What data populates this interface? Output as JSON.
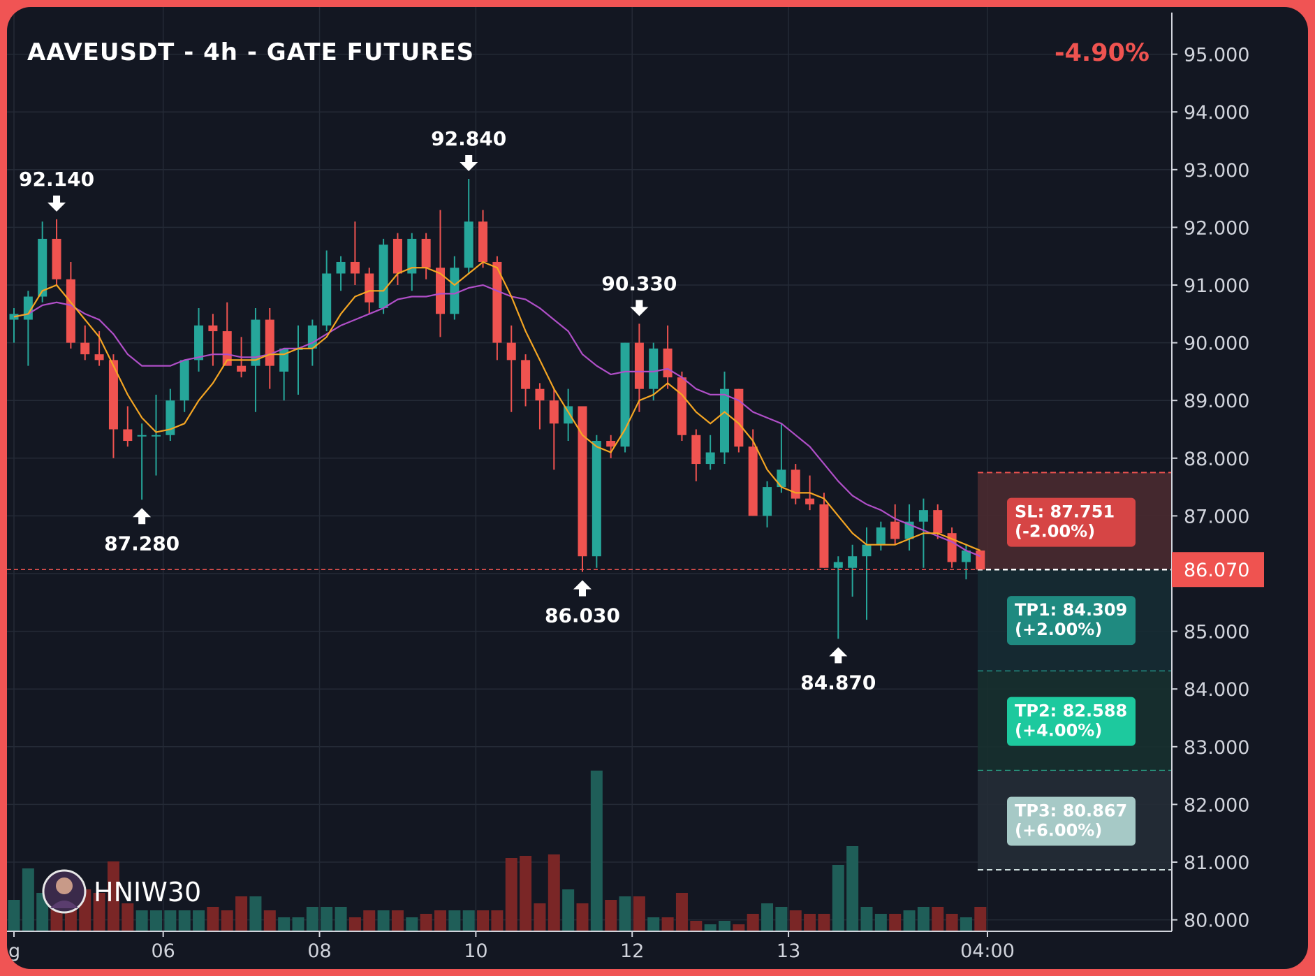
{
  "header": {
    "title": "AAVEUSDT - 4h - GATE FUTURES",
    "change": "-4.90%"
  },
  "colors": {
    "background": "#131722",
    "border": "#f05454",
    "up": "#26a69a",
    "down": "#ef5350",
    "ma_fast": "#f5a623",
    "ma_slow": "#b04fc8",
    "volume_up": "#1f5e58",
    "volume_down": "#7a2626",
    "current_price": "#ef5350"
  },
  "watermark": {
    "name": "HNIW30"
  },
  "current_price": {
    "value": 86.07,
    "label": "86.070"
  },
  "chart_data": {
    "type": "candlestick",
    "title": "AAVEUSDT - 4h - GATE FUTURES",
    "ylim": [
      80,
      95.5
    ],
    "y_ticks": [
      "95.000",
      "94.000",
      "93.000",
      "92.000",
      "91.000",
      "90.000",
      "89.000",
      "88.000",
      "87.000",
      "86.000",
      "85.000",
      "84.000",
      "83.000",
      "82.000",
      "81.000",
      "80.000"
    ],
    "y_tick_values": [
      95,
      94,
      93,
      92,
      91,
      90,
      89,
      88,
      87,
      86,
      85,
      84,
      83,
      82,
      81,
      80
    ],
    "x_ticks": [
      {
        "label": "g",
        "index": 0
      },
      {
        "label": "06",
        "index": 10.5
      },
      {
        "label": "08",
        "index": 21.5
      },
      {
        "label": "10",
        "index": 32.5
      },
      {
        "label": "12",
        "index": 43.5
      },
      {
        "label": "13",
        "index": 54.5
      },
      {
        "label": "04:00",
        "index": 68.5
      }
    ],
    "candles": [
      {
        "o": 90.4,
        "h": 90.6,
        "l": 90.0,
        "c": 90.5
      },
      {
        "o": 90.4,
        "h": 90.9,
        "l": 89.6,
        "c": 90.8
      },
      {
        "o": 90.8,
        "h": 92.1,
        "l": 90.7,
        "c": 91.8
      },
      {
        "o": 91.8,
        "h": 92.14,
        "l": 91.0,
        "c": 91.1
      },
      {
        "o": 91.1,
        "h": 91.4,
        "l": 89.9,
        "c": 90.0
      },
      {
        "o": 90.0,
        "h": 90.3,
        "l": 89.7,
        "c": 89.8
      },
      {
        "o": 89.8,
        "h": 90.2,
        "l": 89.6,
        "c": 89.7
      },
      {
        "o": 89.7,
        "h": 89.8,
        "l": 88.0,
        "c": 88.5
      },
      {
        "o": 88.5,
        "h": 88.9,
        "l": 88.2,
        "c": 88.3
      },
      {
        "o": 88.4,
        "h": 88.6,
        "l": 87.28,
        "c": 88.4
      },
      {
        "o": 88.4,
        "h": 89.1,
        "l": 87.7,
        "c": 88.4
      },
      {
        "o": 88.4,
        "h": 89.2,
        "l": 88.3,
        "c": 89.0
      },
      {
        "o": 89.0,
        "h": 89.6,
        "l": 88.8,
        "c": 89.7
      },
      {
        "o": 89.7,
        "h": 90.6,
        "l": 89.5,
        "c": 90.3
      },
      {
        "o": 90.3,
        "h": 90.5,
        "l": 89.6,
        "c": 90.2
      },
      {
        "o": 90.2,
        "h": 90.7,
        "l": 89.6,
        "c": 89.6
      },
      {
        "o": 89.6,
        "h": 90.1,
        "l": 89.4,
        "c": 89.5
      },
      {
        "o": 89.6,
        "h": 90.6,
        "l": 88.8,
        "c": 90.4
      },
      {
        "o": 90.4,
        "h": 90.6,
        "l": 89.2,
        "c": 89.6
      },
      {
        "o": 89.5,
        "h": 89.8,
        "l": 89.0,
        "c": 89.9
      },
      {
        "o": 89.9,
        "h": 90.3,
        "l": 89.1,
        "c": 89.9
      },
      {
        "o": 89.9,
        "h": 90.4,
        "l": 89.6,
        "c": 90.3
      },
      {
        "o": 90.3,
        "h": 91.6,
        "l": 90.2,
        "c": 91.2
      },
      {
        "o": 91.2,
        "h": 91.5,
        "l": 90.9,
        "c": 91.4
      },
      {
        "o": 91.4,
        "h": 92.1,
        "l": 91.0,
        "c": 91.2
      },
      {
        "o": 91.2,
        "h": 91.3,
        "l": 90.5,
        "c": 90.7
      },
      {
        "o": 90.6,
        "h": 91.8,
        "l": 90.5,
        "c": 91.7
      },
      {
        "o": 91.8,
        "h": 91.9,
        "l": 91.0,
        "c": 91.2
      },
      {
        "o": 91.2,
        "h": 91.9,
        "l": 90.9,
        "c": 91.8
      },
      {
        "o": 91.8,
        "h": 91.9,
        "l": 91.1,
        "c": 91.3
      },
      {
        "o": 91.3,
        "h": 92.3,
        "l": 90.1,
        "c": 90.5
      },
      {
        "o": 90.5,
        "h": 91.5,
        "l": 90.4,
        "c": 91.3
      },
      {
        "o": 91.3,
        "h": 92.84,
        "l": 91.2,
        "c": 92.1
      },
      {
        "o": 92.1,
        "h": 92.3,
        "l": 91.3,
        "c": 91.4
      },
      {
        "o": 91.4,
        "h": 91.5,
        "l": 89.7,
        "c": 90.0
      },
      {
        "o": 90.0,
        "h": 90.3,
        "l": 88.8,
        "c": 89.7
      },
      {
        "o": 89.7,
        "h": 89.8,
        "l": 88.9,
        "c": 89.2
      },
      {
        "o": 89.2,
        "h": 89.3,
        "l": 88.5,
        "c": 89.0
      },
      {
        "o": 89.0,
        "h": 89.2,
        "l": 87.8,
        "c": 88.6
      },
      {
        "o": 88.6,
        "h": 89.2,
        "l": 88.3,
        "c": 88.9
      },
      {
        "o": 88.9,
        "h": 88.9,
        "l": 86.03,
        "c": 86.3
      },
      {
        "o": 86.3,
        "h": 88.4,
        "l": 86.1,
        "c": 88.3
      },
      {
        "o": 88.3,
        "h": 88.4,
        "l": 88.0,
        "c": 88.2
      },
      {
        "o": 88.2,
        "h": 90.0,
        "l": 88.1,
        "c": 90.0
      },
      {
        "o": 90.0,
        "h": 90.33,
        "l": 88.8,
        "c": 89.2
      },
      {
        "o": 89.2,
        "h": 90.0,
        "l": 89.0,
        "c": 89.9
      },
      {
        "o": 89.9,
        "h": 90.3,
        "l": 89.2,
        "c": 89.4
      },
      {
        "o": 89.4,
        "h": 89.5,
        "l": 88.3,
        "c": 88.4
      },
      {
        "o": 88.4,
        "h": 88.5,
        "l": 87.6,
        "c": 87.9
      },
      {
        "o": 87.9,
        "h": 88.4,
        "l": 87.8,
        "c": 88.1
      },
      {
        "o": 88.1,
        "h": 89.5,
        "l": 87.9,
        "c": 89.2
      },
      {
        "o": 89.2,
        "h": 89.2,
        "l": 88.1,
        "c": 88.2
      },
      {
        "o": 88.2,
        "h": 88.5,
        "l": 87.0,
        "c": 87.0
      },
      {
        "o": 87.0,
        "h": 87.6,
        "l": 86.8,
        "c": 87.5
      },
      {
        "o": 87.5,
        "h": 88.6,
        "l": 87.4,
        "c": 87.8
      },
      {
        "o": 87.8,
        "h": 87.9,
        "l": 87.2,
        "c": 87.3
      },
      {
        "o": 87.3,
        "h": 87.7,
        "l": 87.1,
        "c": 87.2
      },
      {
        "o": 87.2,
        "h": 87.4,
        "l": 86.1,
        "c": 86.1
      },
      {
        "o": 86.1,
        "h": 86.3,
        "l": 84.87,
        "c": 86.2
      },
      {
        "o": 86.1,
        "h": 86.5,
        "l": 85.6,
        "c": 86.3
      },
      {
        "o": 86.3,
        "h": 86.8,
        "l": 85.2,
        "c": 86.5
      },
      {
        "o": 86.5,
        "h": 86.9,
        "l": 86.4,
        "c": 86.8
      },
      {
        "o": 86.9,
        "h": 87.2,
        "l": 86.5,
        "c": 86.6
      },
      {
        "o": 86.6,
        "h": 87.2,
        "l": 86.4,
        "c": 86.9
      },
      {
        "o": 86.9,
        "h": 87.3,
        "l": 86.1,
        "c": 87.1
      },
      {
        "o": 87.1,
        "h": 87.2,
        "l": 86.6,
        "c": 86.7
      },
      {
        "o": 86.7,
        "h": 86.8,
        "l": 86.1,
        "c": 86.2
      },
      {
        "o": 86.2,
        "h": 86.5,
        "l": 85.9,
        "c": 86.4
      },
      {
        "o": 86.4,
        "h": 86.4,
        "l": 86.1,
        "c": 86.07
      }
    ],
    "volumes": [
      0.45,
      0.9,
      0.55,
      0.35,
      0.5,
      0.6,
      0.55,
      1.0,
      0.4,
      0.3,
      0.3,
      0.3,
      0.3,
      0.3,
      0.35,
      0.3,
      0.5,
      0.5,
      0.3,
      0.2,
      0.2,
      0.35,
      0.35,
      0.35,
      0.2,
      0.3,
      0.3,
      0.3,
      0.2,
      0.25,
      0.3,
      0.3,
      0.3,
      0.3,
      0.3,
      1.05,
      1.08,
      0.4,
      1.1,
      0.6,
      0.4,
      2.3,
      0.45,
      0.5,
      0.5,
      0.2,
      0.2,
      0.55,
      0.15,
      0.1,
      0.15,
      0.1,
      0.25,
      0.4,
      0.35,
      0.3,
      0.25,
      0.25,
      0.95,
      1.22,
      0.35,
      0.25,
      0.25,
      0.3,
      0.35,
      0.35,
      0.25,
      0.2,
      0.35
    ],
    "ma_fast": [
      90.45,
      90.5,
      90.9,
      91.0,
      90.7,
      90.4,
      90.1,
      89.6,
      89.1,
      88.7,
      88.45,
      88.5,
      88.6,
      89.0,
      89.3,
      89.7,
      89.7,
      89.7,
      89.8,
      89.8,
      89.9,
      89.9,
      90.1,
      90.5,
      90.8,
      90.9,
      90.9,
      91.2,
      91.3,
      91.3,
      91.2,
      91.0,
      91.2,
      91.4,
      91.3,
      90.8,
      90.2,
      89.7,
      89.2,
      88.8,
      88.4,
      88.2,
      88.1,
      88.5,
      89.0,
      89.1,
      89.3,
      89.1,
      88.8,
      88.6,
      88.8,
      88.6,
      88.3,
      87.8,
      87.5,
      87.4,
      87.4,
      87.3,
      87.0,
      86.7,
      86.5,
      86.5,
      86.5,
      86.6,
      86.7,
      86.7,
      86.6,
      86.5,
      86.4
    ],
    "ma_slow": [
      90.45,
      90.5,
      90.65,
      90.7,
      90.65,
      90.5,
      90.4,
      90.15,
      89.8,
      89.6,
      89.6,
      89.6,
      89.7,
      89.75,
      89.8,
      89.8,
      89.75,
      89.75,
      89.8,
      89.9,
      89.9,
      90.0,
      90.15,
      90.3,
      90.4,
      90.5,
      90.6,
      90.75,
      90.8,
      90.8,
      90.85,
      90.85,
      90.95,
      91.0,
      90.9,
      90.8,
      90.75,
      90.6,
      90.4,
      90.2,
      89.8,
      89.6,
      89.45,
      89.5,
      89.5,
      89.5,
      89.55,
      89.4,
      89.2,
      89.1,
      89.1,
      89.0,
      88.8,
      88.7,
      88.6,
      88.4,
      88.2,
      87.9,
      87.6,
      87.35,
      87.2,
      87.1,
      86.95,
      86.85,
      86.75,
      86.65,
      86.55,
      86.4,
      86.3
    ],
    "annotations": [
      {
        "label": "92.140",
        "index": 3,
        "price": 92.14,
        "type": "high"
      },
      {
        "label": "87.280",
        "index": 9,
        "price": 87.28,
        "type": "low"
      },
      {
        "label": "92.840",
        "index": 32,
        "price": 92.84,
        "type": "high"
      },
      {
        "label": "86.030",
        "index": 40,
        "price": 86.03,
        "type": "low"
      },
      {
        "label": "90.330",
        "index": 44,
        "price": 90.33,
        "type": "high"
      },
      {
        "label": "84.870",
        "index": 58,
        "price": 84.87,
        "type": "low"
      }
    ],
    "levels": [
      {
        "name": "SL",
        "label": "SL: 87.751",
        "pct": "(-2.00%)",
        "price": 87.751,
        "fill": "#4a2a30",
        "box": "#d64545",
        "text": "#ffffff",
        "line": "#ef5350"
      },
      {
        "name": "TP1",
        "label": "TP1: 84.309",
        "pct": "(+2.00%)",
        "price": 84.309,
        "fill": "#162b33",
        "box": "#1f8a80",
        "text": "#ffffff",
        "line": "#26a69a"
      },
      {
        "name": "TP2",
        "label": "TP2: 82.588",
        "pct": "(+4.00%)",
        "price": 82.588,
        "fill": "#17302f",
        "box": "#1dc99e",
        "text": "#ffffff",
        "line": "#2bd4a8"
      },
      {
        "name": "TP3",
        "label": "TP3: 80.867",
        "pct": "(+6.00%)",
        "price": 80.867,
        "fill": "#252c36",
        "box": "#a6c9c6",
        "text": "#ffffff",
        "line": "#cfdede"
      }
    ]
  }
}
